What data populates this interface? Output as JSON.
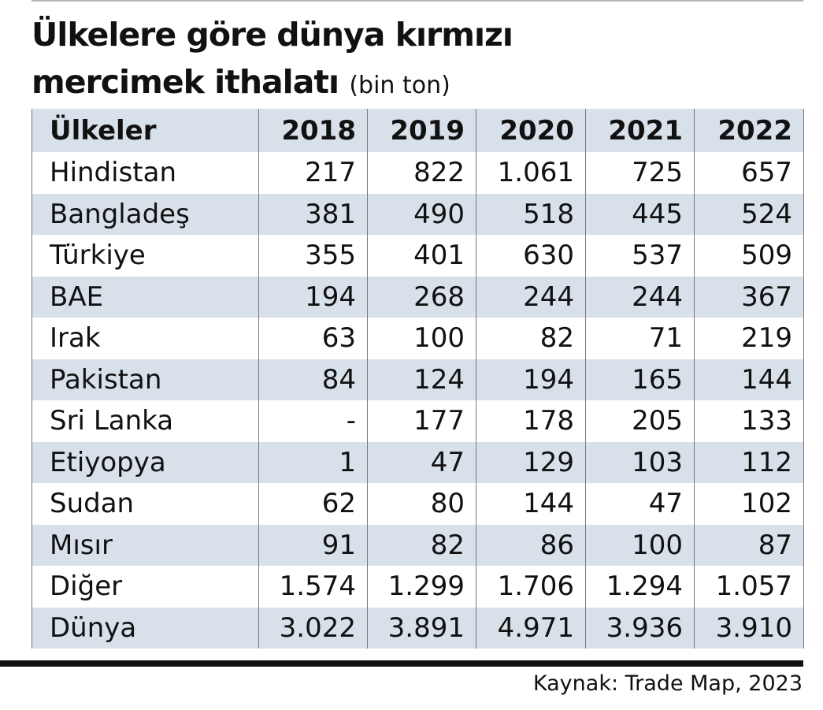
{
  "title_line1": "Ülkelere göre dünya kırmızı",
  "title_line2": "mercimek ithalatı",
  "title_unit": "(bin ton)",
  "source": "Kaynak: Trade Map, 2023",
  "colors": {
    "header_bg": "#d8e1ea",
    "band_bg": "#d8e1ea",
    "rule": "#111111"
  },
  "chart_data": {
    "type": "table",
    "title": "Ülkelere göre dünya kırmızı mercimek ithalatı (bin ton)",
    "columns": [
      "Ülkeler",
      "2018",
      "2019",
      "2020",
      "2021",
      "2022"
    ],
    "rows": [
      [
        "Hindistan",
        "217",
        "822",
        "1.061",
        "725",
        "657"
      ],
      [
        "Bangladeş",
        "381",
        "490",
        "518",
        "445",
        "524"
      ],
      [
        "Türkiye",
        "355",
        "401",
        "630",
        "537",
        "509"
      ],
      [
        "BAE",
        "194",
        "268",
        "244",
        "244",
        "367"
      ],
      [
        "Irak",
        "63",
        "100",
        "82",
        "71",
        "219"
      ],
      [
        "Pakistan",
        "84",
        "124",
        "194",
        "165",
        "144"
      ],
      [
        "Sri Lanka",
        "-",
        "177",
        "178",
        "205",
        "133"
      ],
      [
        "Etiyopya",
        "1",
        "47",
        "129",
        "103",
        "112"
      ],
      [
        "Sudan",
        "62",
        "80",
        "144",
        "47",
        "102"
      ],
      [
        "Mısır",
        "91",
        "82",
        "86",
        "100",
        "87"
      ],
      [
        "Diğer",
        "1.574",
        "1.299",
        "1.706",
        "1.294",
        "1.057"
      ],
      [
        "Dünya",
        "3.022",
        "3.891",
        "4.971",
        "3.936",
        "3.910"
      ]
    ]
  }
}
